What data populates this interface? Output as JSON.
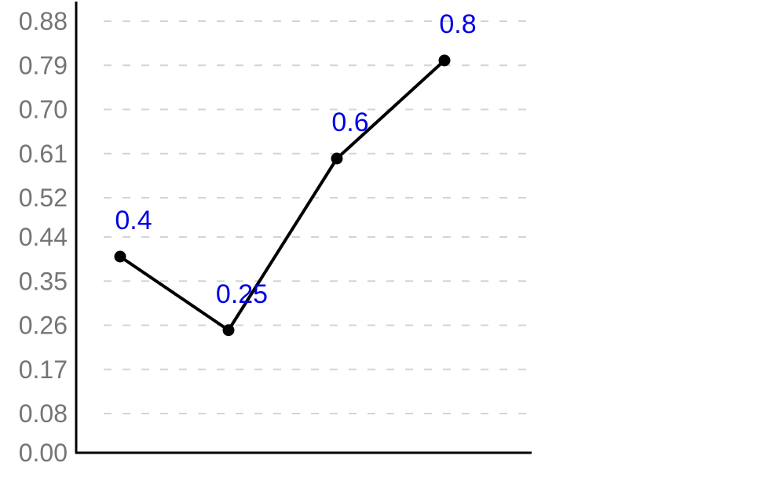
{
  "chart_data": {
    "type": "line",
    "title": "",
    "xlabel": "",
    "ylabel": "",
    "ylim": [
      0,
      0.88
    ],
    "y_ticks": [
      "0.00",
      "0.08",
      "0.17",
      "0.26",
      "0.35",
      "0.44",
      "0.52",
      "0.61",
      "0.70",
      "0.79",
      "0.88"
    ],
    "grid": true,
    "x_ticks_shown": false,
    "legend": "none",
    "series": [
      {
        "values": [
          0.4,
          0.25,
          0.6,
          0.8
        ],
        "data_labels": [
          "0.4",
          "0.25",
          "0.6",
          "0.8"
        ]
      }
    ],
    "colors": {
      "line": "#000000",
      "markers": "#000000",
      "data_labels": "#0000e6",
      "tick_labels": "#757575",
      "grid": "#d4d4d4",
      "axes": "#000000"
    }
  }
}
